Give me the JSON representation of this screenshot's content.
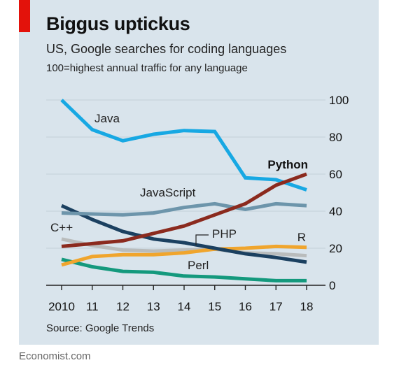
{
  "header": {
    "title": "Biggus uptickus",
    "subtitle": "US, Google searches for coding languages",
    "note": "100=highest annual traffic for any language"
  },
  "footer": {
    "source": "Source: Google Trends",
    "brand": "Economist.com"
  },
  "colors": {
    "panel": "#d9e4ec",
    "accent": "#e3120b",
    "gridline": "#c7d3dc",
    "axis": "#222222"
  },
  "chart_data": {
    "type": "line",
    "title": "Biggus uptickus",
    "subtitle": "US, Google searches for coding languages",
    "xlabel": "",
    "ylabel": "100=highest annual traffic for any language",
    "x": [
      2010,
      2011,
      2012,
      2013,
      2014,
      2015,
      2016,
      2017,
      2018
    ],
    "x_tick_labels": [
      "2010",
      "11",
      "12",
      "13",
      "14",
      "15",
      "16",
      "17",
      "18"
    ],
    "y_ticks": [
      0,
      20,
      40,
      60,
      80,
      100
    ],
    "y_tick_labels": [
      "0",
      "20",
      "40",
      "60",
      "80",
      "100"
    ],
    "xlim": [
      2010,
      2018
    ],
    "ylim": [
      0,
      100
    ],
    "grid": true,
    "series": [
      {
        "name": "Perl",
        "color": "#14997d",
        "bold": false,
        "values": [
          14,
          10,
          7.5,
          7,
          5,
          4.5,
          3.5,
          2.5,
          2.5
        ]
      },
      {
        "name": "C++",
        "color": "#b9bcbc",
        "bold": false,
        "values": [
          25,
          21.5,
          19,
          18.5,
          19,
          19.5,
          17.5,
          17,
          16
        ]
      },
      {
        "name": "R",
        "color": "#f0a52d",
        "bold": false,
        "values": [
          11,
          15.5,
          16.5,
          16.5,
          17.5,
          19.5,
          20,
          21,
          20.5
        ]
      },
      {
        "name": "PHP",
        "color": "#1b4060",
        "bold": false,
        "values": [
          43,
          35.5,
          29,
          25,
          23,
          20,
          17,
          15,
          12.5
        ]
      },
      {
        "name": "JavaScript",
        "color": "#6d95ab",
        "bold": false,
        "values": [
          39,
          38.5,
          38,
          39,
          42,
          44,
          41,
          44,
          43
        ]
      },
      {
        "name": "Java",
        "color": "#17a8e3",
        "bold": false,
        "values": [
          100,
          84,
          78,
          81.5,
          83.5,
          83,
          58,
          57,
          51.5
        ]
      },
      {
        "name": "Python",
        "color": "#8b2a1e",
        "bold": true,
        "values": [
          21,
          22.5,
          24,
          28,
          32,
          38,
          44,
          54,
          60
        ]
      }
    ]
  }
}
